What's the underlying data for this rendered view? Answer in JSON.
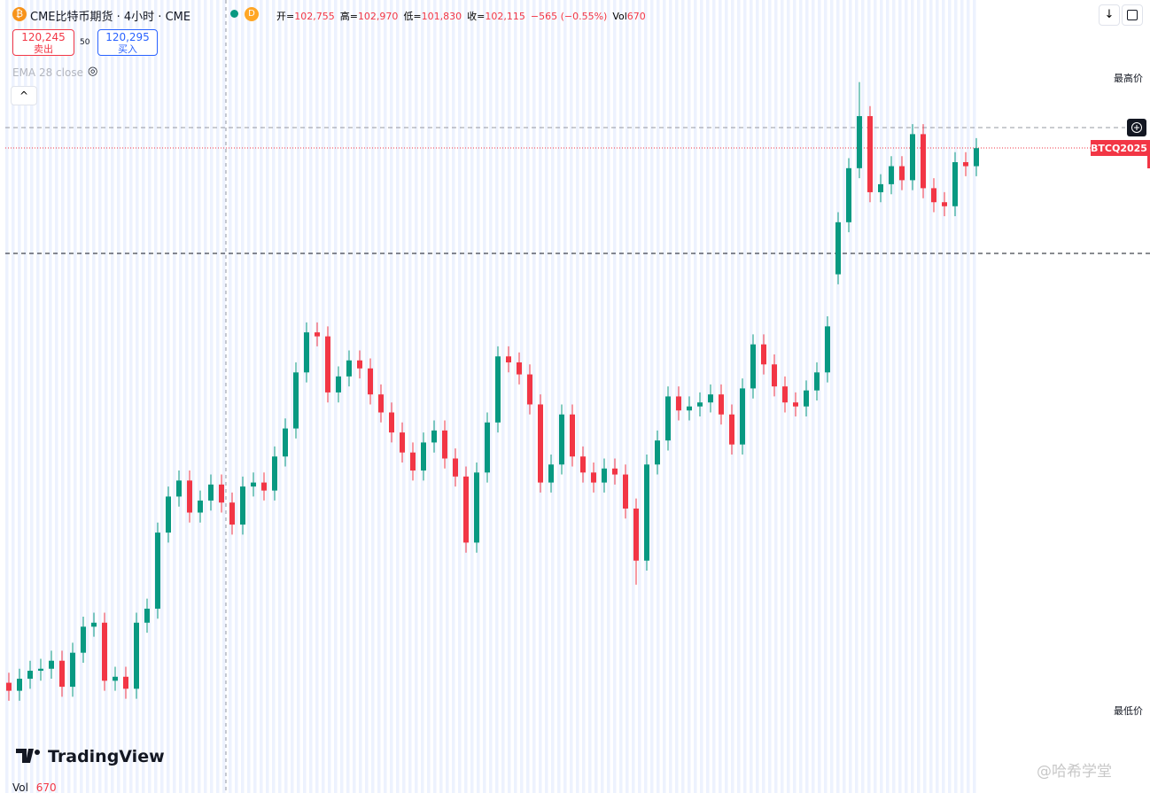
{
  "header": {
    "title": "CME比特币期货 · 4小时 · CME",
    "badge": "D",
    "ohlc": [
      {
        "label": "开=",
        "value": "102,755"
      },
      {
        "label": "高=",
        "value": "102,970"
      },
      {
        "label": "低=",
        "value": "101,830"
      },
      {
        "label": "收=",
        "value": "102,115"
      }
    ],
    "change": "−565 (−0.55%)",
    "vol_label": "Vol",
    "vol_value": "670"
  },
  "trade": {
    "sell_price": "120,245",
    "sell_label": "卖出",
    "spread": "50",
    "buy_price": "120,295",
    "buy_label": "买入"
  },
  "indicator": "EMA 28 close",
  "price_labels": {
    "high": "最高价",
    "low": "最低价",
    "symbol": "BTCQ2025"
  },
  "logo": "TradingView",
  "watermark": "@哈希学堂",
  "volume": {
    "label": "Vol",
    "value": "670"
  },
  "chart_data": {
    "type": "candlestick",
    "up_color": "#089981",
    "down_color": "#f23645",
    "ylim": [
      89100,
      127600
    ],
    "open": [
      93500,
      93100,
      93700,
      94100,
      94200,
      94600,
      93300,
      95000,
      96300,
      96500,
      93600,
      93800,
      93200,
      96500,
      97200,
      101000,
      102800,
      103600,
      102000,
      102600,
      103400,
      102500,
      101400,
      103300,
      103500,
      103100,
      104800,
      106200,
      109000,
      111000,
      110800,
      108000,
      108800,
      109600,
      109200,
      107900,
      107000,
      106000,
      105000,
      104100,
      105500,
      106100,
      104700,
      103800,
      100500,
      104000,
      106500,
      109800,
      109500,
      108900,
      107400,
      103500,
      104400,
      106900,
      104800,
      104000,
      103500,
      104200,
      103900,
      102200,
      99600,
      104400,
      105600,
      107800,
      107100,
      107300,
      107500,
      107900,
      106900,
      105400,
      108200,
      110400,
      109400,
      108300,
      107500,
      107300,
      108100,
      109000,
      113900,
      116500,
      119200,
      121800,
      118000,
      118400,
      119300,
      118600,
      120900,
      118200,
      117500,
      117300,
      119500,
      119300
    ],
    "high": [
      94000,
      94200,
      94600,
      94700,
      95100,
      95100,
      95500,
      96800,
      97000,
      97000,
      94300,
      94300,
      97000,
      97700,
      101500,
      103300,
      104100,
      104100,
      103100,
      103900,
      103900,
      103000,
      103800,
      104000,
      104000,
      105300,
      106700,
      109500,
      111500,
      111500,
      111300,
      109300,
      110100,
      110100,
      109700,
      108400,
      107500,
      106500,
      105500,
      106000,
      106600,
      106600,
      105200,
      104300,
      104500,
      107000,
      110300,
      110300,
      110000,
      109400,
      107900,
      104900,
      107400,
      107400,
      105300,
      104500,
      104700,
      104700,
      104400,
      102700,
      104900,
      106100,
      108300,
      108300,
      107800,
      108000,
      108400,
      108400,
      107400,
      108700,
      110900,
      110900,
      109900,
      108800,
      108000,
      108600,
      109500,
      111800,
      117000,
      119700,
      123500,
      122300,
      118900,
      119800,
      119800,
      121400,
      121400,
      118700,
      118000,
      120000,
      120000,
      120700
    ],
    "low": [
      92600,
      92600,
      93200,
      93600,
      93700,
      92800,
      92800,
      94500,
      95800,
      93100,
      93100,
      92700,
      92700,
      96000,
      96700,
      100500,
      102300,
      101500,
      101500,
      102100,
      102000,
      100900,
      100900,
      102800,
      102600,
      102600,
      104300,
      105700,
      108500,
      110300,
      107500,
      107500,
      108300,
      108700,
      107400,
      106500,
      105500,
      104500,
      103600,
      103600,
      105000,
      104200,
      103300,
      100000,
      100000,
      103500,
      106000,
      109000,
      108400,
      106900,
      103000,
      103000,
      103900,
      104300,
      103500,
      103000,
      103000,
      103400,
      101700,
      98400,
      99100,
      103900,
      105100,
      106600,
      106600,
      106800,
      107000,
      106400,
      104900,
      104900,
      107700,
      108900,
      107800,
      107000,
      106800,
      106800,
      107600,
      108500,
      113400,
      116000,
      118700,
      117500,
      117500,
      117900,
      118100,
      118100,
      117700,
      117000,
      116800,
      116800,
      118800,
      118800
    ],
    "close": [
      93100,
      93700,
      94100,
      94200,
      94600,
      93300,
      95000,
      96300,
      96500,
      93600,
      93800,
      93200,
      96500,
      97200,
      101000,
      102800,
      103600,
      102000,
      102600,
      103400,
      102500,
      101400,
      103300,
      103500,
      103100,
      104800,
      106200,
      109000,
      111000,
      110800,
      108000,
      108800,
      109600,
      109200,
      107900,
      107000,
      106000,
      105000,
      104100,
      105500,
      106100,
      104700,
      103800,
      100500,
      104000,
      106500,
      109800,
      109500,
      108900,
      107400,
      103500,
      104400,
      106900,
      104800,
      104000,
      103500,
      104200,
      103900,
      102200,
      99600,
      104400,
      105600,
      107800,
      107100,
      107300,
      107500,
      107900,
      106900,
      105400,
      108200,
      110400,
      109400,
      108300,
      107500,
      107300,
      108100,
      109000,
      111300,
      116500,
      119200,
      121800,
      118000,
      118400,
      119300,
      118600,
      120900,
      118200,
      117500,
      117300,
      119500,
      119300,
      120200
    ]
  }
}
